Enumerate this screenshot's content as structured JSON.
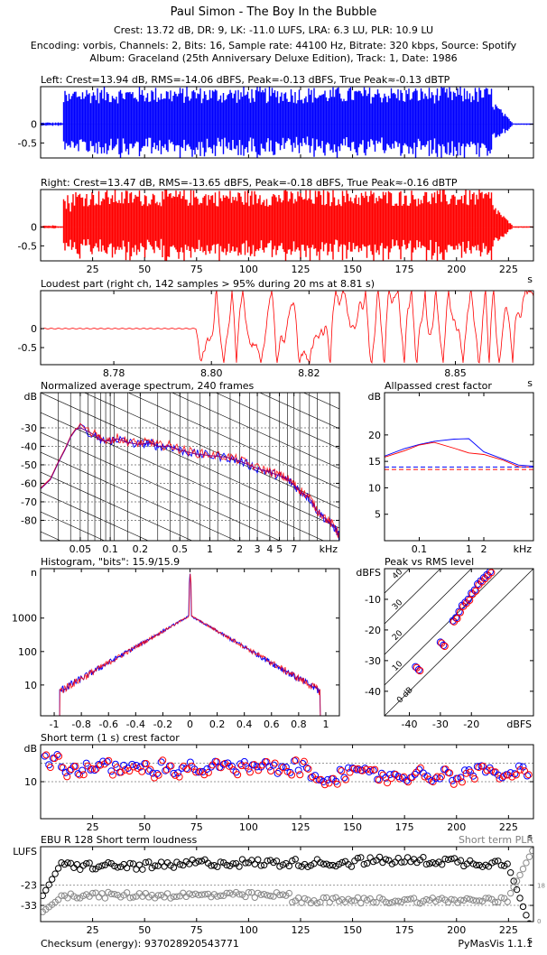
{
  "header": {
    "title": "Paul Simon - The Boy In the Bubble",
    "summary": "Crest: 13.72 dB,  DR: 9,  LK: -11.0 LUFS,  LRA: 6.3 LU,  PLR: 10.9 LU",
    "encoding": "Encoding: vorbis,  Channels: 2,  Bits: 16,  Sample rate: 44100 Hz,  Bitrate: 320 kbps,  Source: Spotify",
    "album": "Album: Graceland (25th Anniversary Deluxe Edition),  Track: 1,  Date: 1986"
  },
  "footer": {
    "checksum": "Checksum (energy): 937028920543771",
    "version": "PyMasVis 1.1.1"
  },
  "colors": {
    "left": "#0000ff",
    "right": "#ff0000",
    "purple": "#800080",
    "grey": "#808080"
  },
  "chart_data": [
    {
      "id": "left",
      "type": "waveform",
      "title": "Left: Crest=13.94 dB, RMS=-14.06 dBFS, Peak=-0.13 dBFS, True Peak≈-0.13 dBTP",
      "xlim": [
        0,
        237
      ],
      "ylim": [
        -0.9,
        1.0
      ],
      "xticks": [
        25,
        50,
        75,
        100,
        125,
        150,
        175,
        200,
        225
      ],
      "xunit": "s",
      "yticks": [
        0,
        -0.5
      ],
      "ytick_labels": [
        "0",
        "-0.5"
      ]
    },
    {
      "id": "right",
      "type": "waveform",
      "title": "Right: Crest=13.47 dB, RMS=-13.65 dBFS, Peak=-0.18 dBFS, True Peak≈-0.16 dBTP",
      "xlim": [
        0,
        237
      ],
      "ylim": [
        -0.9,
        1.0
      ],
      "xticks": [
        25,
        50,
        75,
        100,
        125,
        150,
        175,
        200,
        225
      ],
      "xtick_labels": [
        "25",
        "50",
        "75",
        "100",
        "125",
        "150",
        "175",
        "200",
        "225"
      ],
      "xunit": "s",
      "yticks": [
        0,
        -0.5
      ],
      "ytick_labels": [
        "0",
        "-0.5"
      ]
    },
    {
      "id": "loudest",
      "type": "line",
      "title": "Loudest part (right ch, 142 samples > 95% during 20 ms at 8.81 s)",
      "xlim": [
        8.765,
        8.866
      ],
      "ylim": [
        -0.95,
        1.0
      ],
      "xticks": [
        8.78,
        8.8,
        8.82,
        8.85
      ],
      "xtick_labels": [
        "8.78",
        "8.80",
        "8.82",
        "8.85"
      ],
      "xunit": "s",
      "yticks": [
        0,
        -0.5
      ],
      "ytick_labels": [
        "0",
        "-0.5"
      ]
    },
    {
      "id": "spectrum",
      "type": "line",
      "title": "Normalized average spectrum, 240 frames",
      "ylabel": "dB",
      "xlabel": "kHz",
      "x_scale": "log",
      "xlim": [
        0.02,
        20
      ],
      "ylim": [
        -91,
        -11
      ],
      "xticks": [
        0.05,
        0.1,
        0.2,
        0.5,
        1,
        2,
        3,
        4,
        5,
        7
      ],
      "xtick_labels": [
        "0.05",
        "0.1",
        "0.2",
        "0.5",
        "1",
        "2",
        "3",
        "4",
        "5",
        "7"
      ],
      "yticks": [
        -30,
        -40,
        -50,
        -60,
        -70,
        -80
      ],
      "ytick_labels": [
        "-30",
        "-40",
        "-50",
        "-60",
        "-70",
        "-80"
      ],
      "series_x": [
        0.02,
        0.025,
        0.03,
        0.035,
        0.04,
        0.045,
        0.05,
        0.06,
        0.07,
        0.08,
        0.1,
        0.12,
        0.15,
        0.2,
        0.25,
        0.3,
        0.4,
        0.5,
        0.7,
        1,
        1.5,
        2,
        3,
        4,
        5,
        6,
        7,
        8,
        10,
        12,
        15,
        18,
        20
      ],
      "series": [
        {
          "values": [
            -63,
            -58,
            -49,
            -42,
            -35,
            -31,
            -30,
            -32,
            -34,
            -37,
            -37,
            -36,
            -38,
            -39,
            -38,
            -40,
            -40,
            -42,
            -44,
            -45,
            -46,
            -48,
            -52,
            -54,
            -56,
            -58,
            -61,
            -64,
            -68,
            -75,
            -80,
            -84,
            -89
          ]
        }
      ]
    },
    {
      "id": "allpass",
      "type": "line",
      "title": "Allpassed crest factor",
      "ylabel": "dB",
      "xlabel": "kHz",
      "x_scale": "log",
      "xlim": [
        0.02,
        20
      ],
      "ylim": [
        0,
        28
      ],
      "xticks": [
        0.1,
        1,
        2
      ],
      "xtick_labels": [
        "0.1",
        "1",
        "2"
      ],
      "yticks": [
        20,
        15,
        10,
        5
      ],
      "ytick_labels": [
        "20",
        "15",
        "10",
        "5"
      ],
      "series_x": [
        0.02,
        0.05,
        0.1,
        0.2,
        0.5,
        1,
        2,
        5,
        10,
        20
      ],
      "series": [
        {
          "values": [
            16.0,
            17.4,
            18.2,
            18.8,
            19.2,
            19.3,
            16.8,
            15.4,
            14.3,
            14.1
          ]
        },
        {
          "values": [
            15.8,
            17.0,
            18.1,
            18.6,
            17.5,
            16.6,
            16.3,
            15.2,
            14.0,
            13.9
          ]
        }
      ],
      "ref_left": 13.94,
      "ref_right": 13.47
    },
    {
      "id": "histogram",
      "type": "line",
      "title": "Histogram, \"bits\": 15.9/15.9",
      "ylabel": "n",
      "y_scale": "log",
      "xlim": [
        -1.1,
        1.1
      ],
      "ylim": [
        1.2,
        30000
      ],
      "xticks": [
        -1,
        -0.8,
        -0.6,
        -0.4,
        -0.2,
        0,
        0.2,
        0.4,
        0.6,
        0.8,
        1
      ],
      "xtick_labels": [
        "-1",
        "-0.8",
        "-0.6",
        "-0.4",
        "-0.2",
        "0",
        "0.2",
        "0.4",
        "0.6",
        "0.8",
        "1"
      ],
      "yticks": [
        1000,
        100,
        10
      ],
      "ytick_labels": [
        "1000",
        "100",
        "10"
      ]
    },
    {
      "id": "peakrms",
      "type": "scatter",
      "title": "Peak vs RMS level",
      "ylabel": "dBFS",
      "xlabel": "dBFS",
      "xlim": [
        -48,
        0
      ],
      "ylim": [
        -48,
        0
      ],
      "xticks": [
        -40,
        -30,
        -20
      ],
      "xtick_labels": [
        "-40",
        "-30",
        "-20"
      ],
      "yticks": [
        -10,
        -20,
        -30,
        -40
      ],
      "ytick_labels": [
        "-10",
        "-20",
        "-30",
        "-40"
      ],
      "diagonal_labels": [
        "40",
        "30",
        "20",
        "10",
        "0 dB"
      ],
      "points": [
        [
          -38,
          -32
        ],
        [
          -37,
          -33
        ],
        [
          -30,
          -24
        ],
        [
          -29,
          -25
        ],
        [
          -26,
          -17
        ],
        [
          -25,
          -16
        ],
        [
          -24,
          -14
        ],
        [
          -23,
          -12
        ],
        [
          -22,
          -11
        ],
        [
          -21,
          -10
        ],
        [
          -20,
          -8
        ],
        [
          -19,
          -7
        ],
        [
          -18,
          -5
        ],
        [
          -17,
          -4
        ],
        [
          -16,
          -3
        ],
        [
          -15,
          -2
        ],
        [
          -14,
          -1
        ]
      ]
    },
    {
      "id": "crest_st",
      "type": "scatter",
      "title": "Short term (1 s) crest factor",
      "ylabel": "dB",
      "xlim": [
        0,
        237
      ],
      "ylim": [
        2,
        18
      ],
      "xticks": [
        25,
        50,
        75,
        100,
        125,
        150,
        175,
        200,
        225
      ],
      "xtick_labels": [
        "25",
        "50",
        "75",
        "100",
        "125",
        "150",
        "175",
        "200",
        "225"
      ],
      "xunit": "s",
      "yticks": [
        10
      ],
      "ytick_labels": [
        "10"
      ]
    },
    {
      "id": "ebu",
      "type": "scatter",
      "title": "EBU R 128 Short term loudness",
      "right_title": "Short term PLR",
      "ylabel": "LUFS",
      "xlim": [
        0,
        237
      ],
      "ylim": [
        -41,
        -4
      ],
      "xticks": [
        25,
        50,
        75,
        100,
        125,
        150,
        175,
        200,
        225
      ],
      "xtick_labels": [
        "25",
        "50",
        "75",
        "100",
        "125",
        "150",
        "175",
        "200",
        "225"
      ],
      "xunit": "s",
      "yticks": [
        -23,
        -33
      ],
      "ytick_labels": [
        "-23",
        "-33"
      ],
      "right_ticks": [
        "18",
        "0"
      ]
    }
  ]
}
